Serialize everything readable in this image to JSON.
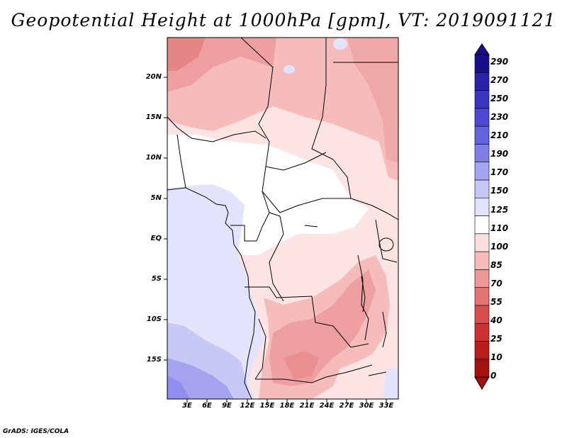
{
  "title": "Geopotential Height at 1000hPa [gpm], VT: 2019091121",
  "lat_labels": [
    "20N",
    "15N",
    "10N",
    "5N",
    "EQ",
    "5S",
    "10S",
    "15S"
  ],
  "lon_labels": [
    "3E",
    "6E",
    "9E",
    "12E",
    "15E",
    "18E",
    "21E",
    "24E",
    "27E",
    "30E",
    "33E"
  ],
  "colorbar": {
    "levels": [
      "290",
      "270",
      "250",
      "230",
      "210",
      "190",
      "170",
      "150",
      "125",
      "110",
      "100",
      "85",
      "70",
      "55",
      "40",
      "25",
      "10",
      "0"
    ],
    "colors": [
      "#1a0e8c",
      "#2a22a8",
      "#3a35bf",
      "#4c48cf",
      "#6462dc",
      "#7f7ee6",
      "#a3a3f0",
      "#c8c8f7",
      "#e3e3fb",
      "#ffffff",
      "#fcdede",
      "#f6bcbc",
      "#ee9898",
      "#e47474",
      "#d84e4e",
      "#cc3030",
      "#bb1c1c",
      "#a51010"
    ]
  },
  "credit": "GrADS: IGES/COLA"
}
